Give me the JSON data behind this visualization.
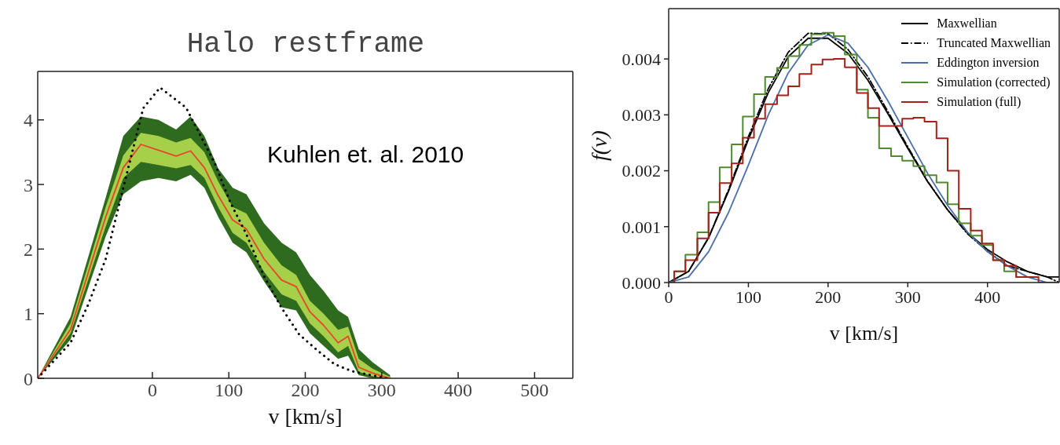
{
  "chart_data": [
    {
      "type": "line",
      "title": "Halo restframe",
      "xlabel": "v [km/s]",
      "annotations": [
        "Kuhlen et. al. 2010"
      ],
      "xlim": [
        -150,
        550
      ],
      "xticks": [
        0,
        100,
        200,
        300,
        400,
        500
      ],
      "ylim": [
        0,
        4.75
      ],
      "yticks": [
        0,
        1,
        2,
        3,
        4
      ],
      "legend": false,
      "x": [
        -150,
        -107,
        -61,
        -38,
        -15,
        8,
        31,
        50,
        68,
        86,
        105,
        123,
        146,
        169,
        188,
        206,
        224,
        243,
        256,
        270,
        288,
        311
      ],
      "series": [
        {
          "type": "line",
          "color": "#2e6b1e",
          "values": [
            null,
            null,
            null,
            null,
            null,
            null,
            null,
            null,
            null,
            null,
            null,
            null,
            null,
            null,
            null,
            null,
            null,
            null,
            null,
            null,
            null,
            null
          ],
          "lower": [
            0,
            0.6,
            2.2,
            2.85,
            3.05,
            3.1,
            3.05,
            3.15,
            2.95,
            2.5,
            2.1,
            1.95,
            1.5,
            1.1,
            1.05,
            0.7,
            0.5,
            0.3,
            0.35,
            0.05,
            0,
            0
          ],
          "upper": [
            0,
            0.95,
            2.8,
            3.75,
            4.05,
            4.0,
            3.85,
            4.05,
            3.75,
            3.25,
            2.95,
            2.85,
            2.4,
            2.1,
            1.95,
            1.6,
            1.35,
            1.05,
            0.95,
            0.45,
            0.25,
            0.05
          ]
        },
        {
          "type": "line",
          "color": "#e8452c",
          "values": [
            0,
            0.76,
            2.5,
            3.26,
            3.62,
            3.53,
            3.44,
            3.52,
            3.26,
            2.83,
            2.45,
            2.31,
            1.85,
            1.52,
            1.42,
            1.03,
            0.82,
            0.55,
            0.65,
            0.17,
            0.08,
            0
          ],
          "lower": [
            0,
            0.7,
            2.35,
            3.1,
            3.35,
            3.3,
            3.25,
            3.3,
            3.1,
            2.65,
            2.25,
            2.1,
            1.65,
            1.3,
            1.2,
            0.85,
            0.65,
            0.4,
            0.5,
            0.1,
            0.03,
            0
          ],
          "upper": [
            0,
            0.85,
            2.65,
            3.45,
            3.8,
            3.75,
            3.65,
            3.72,
            3.5,
            3.05,
            2.65,
            2.55,
            2.1,
            1.75,
            1.6,
            1.2,
            1.0,
            0.75,
            0.8,
            0.3,
            0.15,
            0.02
          ]
        },
        {
          "type": "line",
          "color": "#000000",
          "line_style": "dotted",
          "x": [
            -150,
            -107,
            -84,
            -61,
            -38,
            -12,
            10,
            44,
            82,
            102,
            123,
            146,
            169,
            192,
            215,
            238,
            261,
            306
          ],
          "values": [
            0,
            0.55,
            1.14,
            1.85,
            2.95,
            4.18,
            4.5,
            4.19,
            3.32,
            2.72,
            2.23,
            1.58,
            1.09,
            0.68,
            0.44,
            0.22,
            0.11,
            0
          ]
        }
      ]
    },
    {
      "type": "line",
      "xlabel": "v [km/s]",
      "ylabel": "f(v)",
      "xlim": [
        0,
        490
      ],
      "xticks": [
        0,
        100,
        200,
        300,
        400
      ],
      "ylim": [
        0,
        0.0049
      ],
      "yticks": [
        {
          "value": 0,
          "label": "0.000"
        },
        {
          "value": 0.001,
          "label": "0.001"
        },
        {
          "value": 0.002,
          "label": "0.002"
        },
        {
          "value": 0.003,
          "label": "0.003"
        },
        {
          "value": 0.004,
          "label": "0.004"
        }
      ],
      "legend": "top right",
      "x": [
        0,
        25,
        50,
        75,
        100,
        125,
        150,
        175,
        200,
        225,
        250,
        275,
        300,
        325,
        350,
        375,
        400,
        425,
        450,
        475,
        490
      ],
      "series": [
        {
          "name": "Maxwellian",
          "type": "line",
          "color": "#000000",
          "values": [
            0,
            0.0002,
            0.0008,
            0.00163,
            0.00256,
            0.0034,
            0.00404,
            0.00437,
            0.00437,
            0.0041,
            0.00362,
            0.00302,
            0.0024,
            0.0018,
            0.0013,
            0.00089,
            0.00059,
            0.00037,
            0.0002,
            0.0001,
            0.0001
          ]
        },
        {
          "name": "Truncated Maxwellian",
          "type": "line",
          "color": "#000000",
          "line_style": "dashdot",
          "values": [
            0,
            0.0002,
            0.0008,
            0.00166,
            0.00261,
            0.00347,
            0.00412,
            0.00446,
            0.00445,
            0.00417,
            0.00368,
            0.00306,
            0.00243,
            0.00181,
            0.0013,
            0.00087,
            0.00056,
            0.0003,
            0.0002,
            0.0001,
            0
          ]
        },
        {
          "name": "Eddington inversion",
          "type": "line",
          "color": "#4a6fa8",
          "values": [
            0,
            0.0001,
            0.00055,
            0.00125,
            0.0021,
            0.003,
            0.00375,
            0.00425,
            0.00443,
            0.00428,
            0.00385,
            0.00325,
            0.0026,
            0.00195,
            0.00138,
            0.0009,
            0.00055,
            0.0003,
            0.0001,
            0,
            0
          ]
        },
        {
          "name": "Simulation (corrected)",
          "type": "step",
          "color": "#4f8a2e",
          "x": [
            0,
            7,
            21,
            36,
            50,
            64,
            79,
            93,
            107,
            121,
            136,
            150,
            164,
            179,
            193,
            207,
            221,
            236,
            250,
            264,
            279,
            293,
            307,
            321,
            336,
            350,
            364,
            379,
            393,
            407,
            421,
            436,
            450,
            464
          ],
          "values": [
            0,
            0.0002,
            0.0005,
            0.0009,
            0.00144,
            0.00206,
            0.00247,
            0.00297,
            0.00337,
            0.00368,
            0.00384,
            0.00405,
            0.00425,
            0.00444,
            0.00447,
            0.00441,
            0.00408,
            0.00345,
            0.00295,
            0.0024,
            0.00226,
            0.00218,
            0.00208,
            0.00192,
            0.00179,
            0.0014,
            0.00106,
            0.00084,
            0.00067,
            0.0004,
            0.0002,
            0.0001,
            0.0001,
            0.0001
          ]
        },
        {
          "name": "Simulation (full)",
          "type": "step",
          "color": "#a3221c",
          "x": [
            0,
            7,
            21,
            36,
            50,
            64,
            79,
            93,
            107,
            121,
            136,
            150,
            164,
            179,
            193,
            207,
            221,
            236,
            250,
            264,
            279,
            293,
            307,
            321,
            336,
            350,
            364,
            379,
            393,
            407,
            421,
            436,
            450,
            464,
            479,
            490
          ],
          "values": [
            0,
            0.0002,
            0.0004,
            0.00079,
            0.00125,
            0.00178,
            0.00213,
            0.00259,
            0.00293,
            0.00319,
            0.00335,
            0.00351,
            0.00373,
            0.0039,
            0.00399,
            0.004,
            0.00385,
            0.00339,
            0.00312,
            0.0028,
            0.0028,
            0.00293,
            0.00295,
            0.00288,
            0.00258,
            0.002,
            0.00132,
            0.00093,
            0.0007,
            0.0004,
            0.0003,
            0.0001,
            0.0001,
            0,
            0,
            0
          ]
        }
      ]
    }
  ]
}
